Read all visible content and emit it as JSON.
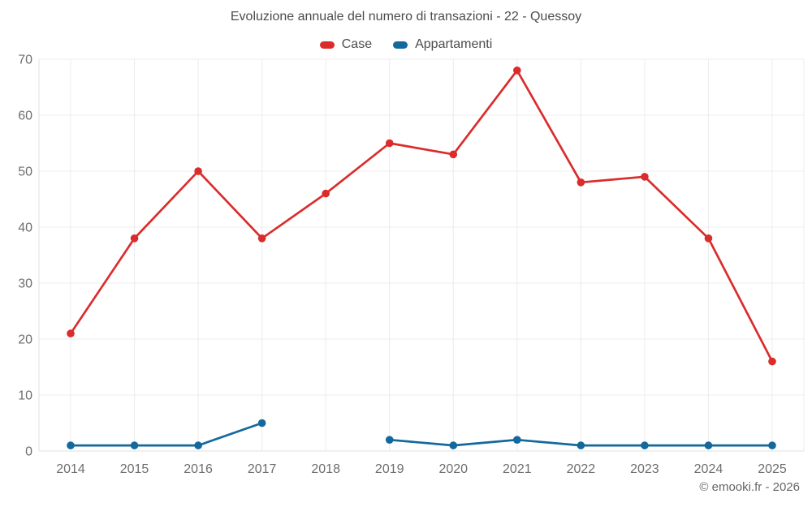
{
  "title": "Evoluzione annuale del numero di transazioni - 22 - Quessoy",
  "legend": [
    {
      "label": "Case",
      "color": "#db2c2c"
    },
    {
      "label": "Appartamenti",
      "color": "#14699c"
    }
  ],
  "copyright": "© emooki.fr - 2026",
  "colors": {
    "grid": "#ececec",
    "grid_boundary": "#e0e0e0",
    "tick_text": "#6e6e6e",
    "title_text": "#4c4c4c"
  },
  "chart_data": {
    "type": "line",
    "title": "Evoluzione annuale del numero di transazioni - 22 - Quessoy",
    "categories": [
      "2014",
      "2015",
      "2016",
      "2017",
      "2018",
      "2019",
      "2020",
      "2021",
      "2022",
      "2023",
      "2024",
      "2025"
    ],
    "series": [
      {
        "name": "Case",
        "color": "#db2c2c",
        "values": [
          21,
          38,
          50,
          38,
          46,
          55,
          53,
          68,
          48,
          49,
          38,
          16
        ]
      },
      {
        "name": "Appartamenti",
        "color": "#14699c",
        "values": [
          1,
          1,
          1,
          5,
          null,
          2,
          1,
          2,
          1,
          1,
          1,
          1
        ]
      }
    ],
    "xlabel": "",
    "ylabel": "",
    "ylim": [
      0,
      70
    ],
    "yticks": [
      0,
      10,
      20,
      30,
      40,
      50,
      60,
      70
    ],
    "grid": true,
    "legend_position": "top"
  }
}
